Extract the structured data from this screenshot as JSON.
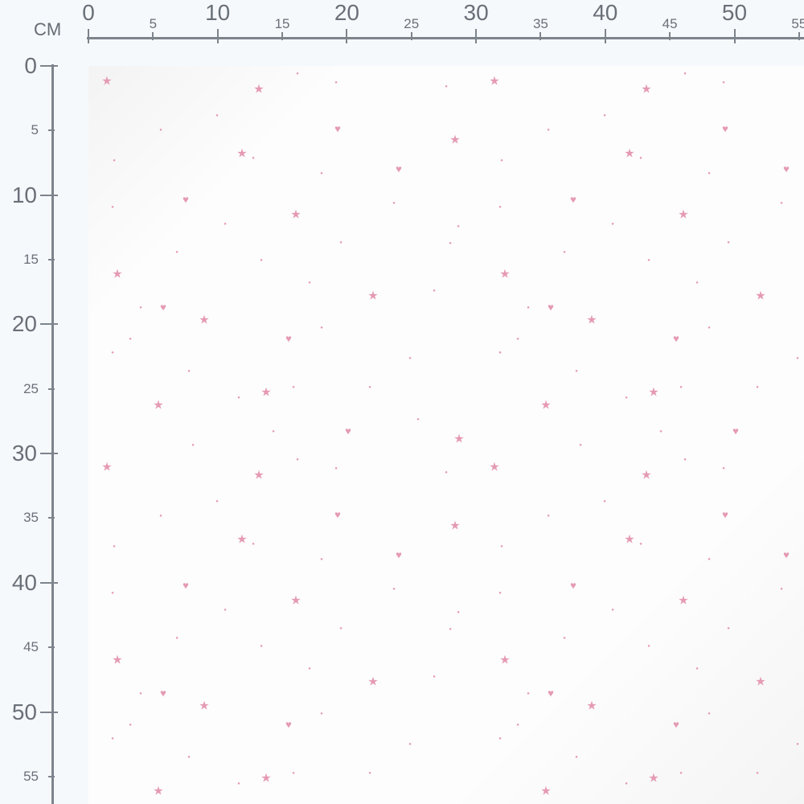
{
  "ruler": {
    "unit_label": "CM",
    "x_ticks": [
      0,
      5,
      10,
      15,
      20,
      25,
      30,
      35,
      40,
      45,
      50,
      55
    ],
    "y_ticks": [
      0,
      5,
      10,
      15,
      20,
      25,
      30,
      35,
      40,
      45,
      50,
      55
    ]
  },
  "fabric": {
    "background": "#fdfdfd",
    "motif_color": "#e59ab4",
    "motifs": [
      "star-icon",
      "heart-icon",
      "dot"
    ]
  }
}
